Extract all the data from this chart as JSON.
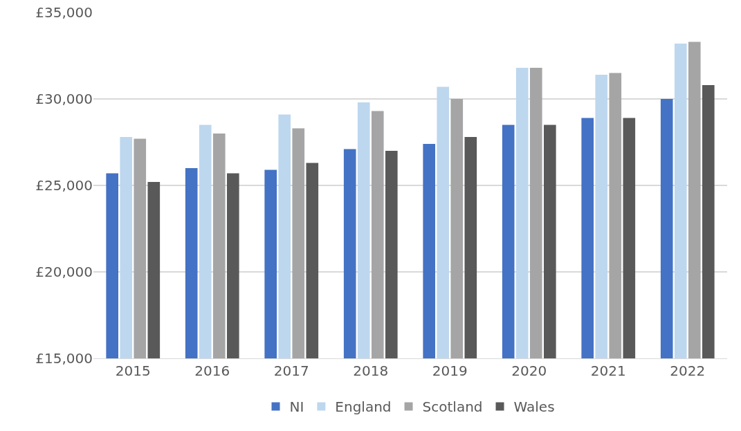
{
  "chart_data": {
    "type": "bar",
    "categories": [
      "2015",
      "2016",
      "2017",
      "2018",
      "2019",
      "2020",
      "2021",
      "2022"
    ],
    "series": [
      {
        "name": "NI",
        "color": "#4472c4",
        "values": [
          25700,
          26000,
          25900,
          27100,
          27400,
          28500,
          28900,
          30000
        ]
      },
      {
        "name": "England",
        "color": "#bdd7ee",
        "values": [
          27800,
          28500,
          29100,
          29800,
          30700,
          31800,
          31400,
          33200
        ]
      },
      {
        "name": "Scotland",
        "color": "#a5a5a5",
        "values": [
          27700,
          28000,
          28300,
          29300,
          30000,
          31800,
          31500,
          33300
        ]
      },
      {
        "name": "Wales",
        "color": "#595959",
        "values": [
          25200,
          25700,
          26300,
          27000,
          27800,
          28500,
          28900,
          30800
        ]
      }
    ],
    "ylim": [
      15000,
      35000
    ],
    "yticks": [
      {
        "value": 15000,
        "label": "£15,000"
      },
      {
        "value": 20000,
        "label": "£20,000"
      },
      {
        "value": 25000,
        "label": "£25,000"
      },
      {
        "value": 30000,
        "label": "£30,000"
      },
      {
        "value": 35000,
        "label": "£35,000"
      }
    ],
    "grid": "y",
    "legend": "bottom"
  }
}
